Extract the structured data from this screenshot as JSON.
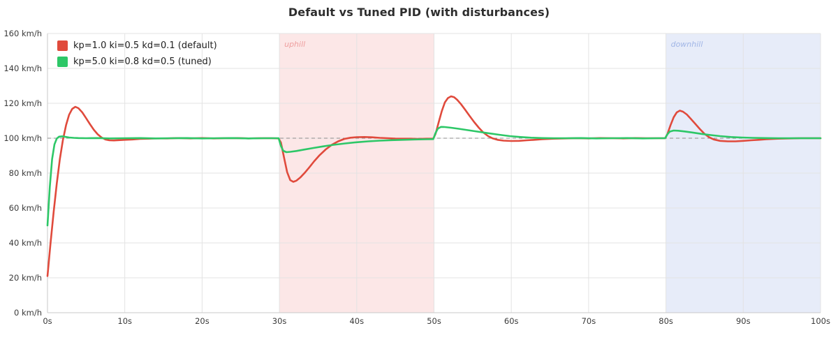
{
  "title": "Default vs Tuned PID (with disturbances)",
  "legend": {
    "items": [
      {
        "label": "kp=1.0 ki=0.5 kd=0.1 (default)",
        "color": "#e04a3c"
      },
      {
        "label": "kp=5.0 ki=0.8 kd=0.5 (tuned)",
        "color": "#2dc767"
      }
    ]
  },
  "chart_data": {
    "type": "line",
    "title": "Default vs Tuned PID (with disturbances)",
    "xlabel": "",
    "ylabel": "",
    "x_unit": "s",
    "y_unit": "km/h",
    "xlim": [
      0,
      100
    ],
    "ylim": [
      0,
      160
    ],
    "grid": true,
    "legend_position": "top-left",
    "setpoint": 100,
    "x_ticks": [
      0,
      10,
      20,
      30,
      40,
      50,
      60,
      70,
      80,
      90,
      100
    ],
    "x_tick_labels": [
      "0s",
      "10s",
      "20s",
      "30s",
      "40s",
      "50s",
      "60s",
      "70s",
      "80s",
      "90s",
      "100s"
    ],
    "y_ticks": [
      0,
      20,
      40,
      60,
      80,
      100,
      120,
      140,
      160
    ],
    "y_tick_labels": [
      "0 km/h",
      "20 km/h",
      "40 km/h",
      "60 km/h",
      "80 km/h",
      "100 km/h",
      "120 km/h",
      "140 km/h",
      "160 km/h"
    ],
    "colors": {
      "grid": "#e3e3e3",
      "axis": "#c9c9c9",
      "tick_text": "#3a3a3a",
      "setpoint": "#8c8c8c"
    },
    "regions": [
      {
        "label": "uphill",
        "start": 30,
        "end": 50,
        "fill": "rgba(231,86,86,0.14)",
        "text_color": "#ee9e9e"
      },
      {
        "label": "downhill",
        "start": 80,
        "end": 100,
        "fill": "rgba(104,134,219,0.16)",
        "text_color": "#a0b5e6"
      }
    ],
    "series": [
      {
        "name": "kp=1.0 ki=0.5 kd=0.1 (default)",
        "color": "#e04a3c",
        "points": [
          [
            0,
            21
          ],
          [
            0.4,
            40
          ],
          [
            0.8,
            58
          ],
          [
            1.2,
            74
          ],
          [
            1.6,
            88
          ],
          [
            2,
            99
          ],
          [
            2.4,
            107.5
          ],
          [
            2.8,
            113.5
          ],
          [
            3.2,
            116.8
          ],
          [
            3.6,
            118
          ],
          [
            4,
            117.2
          ],
          [
            4.5,
            114.8
          ],
          [
            5,
            111.5
          ],
          [
            5.5,
            108
          ],
          [
            6,
            104.8
          ],
          [
            6.5,
            102.2
          ],
          [
            7,
            100.4
          ],
          [
            7.5,
            99.3
          ],
          [
            8,
            98.8
          ],
          [
            8.6,
            98.7
          ],
          [
            9.2,
            98.9
          ],
          [
            10,
            99.1
          ],
          [
            11,
            99.3
          ],
          [
            12,
            99.6
          ],
          [
            13,
            99.7
          ],
          [
            14,
            99.9
          ],
          [
            15.5,
            99.9
          ],
          [
            17,
            100.1
          ],
          [
            18.5,
            99.9
          ],
          [
            20,
            100.1
          ],
          [
            21.5,
            99.9
          ],
          [
            23,
            100
          ],
          [
            24.5,
            100.1
          ],
          [
            26,
            99.9
          ],
          [
            27.5,
            100
          ],
          [
            29,
            100
          ],
          [
            29.9,
            99.9
          ],
          [
            30.2,
            97.5
          ],
          [
            30.6,
            89
          ],
          [
            31,
            80.5
          ],
          [
            31.4,
            76
          ],
          [
            31.8,
            75
          ],
          [
            32.2,
            75.7
          ],
          [
            32.7,
            77.5
          ],
          [
            33.3,
            80.3
          ],
          [
            33.9,
            83.5
          ],
          [
            34.5,
            86.8
          ],
          [
            35.2,
            90.3
          ],
          [
            36,
            93.6
          ],
          [
            36.8,
            96.3
          ],
          [
            37.6,
            98.2
          ],
          [
            38.4,
            99.6
          ],
          [
            39.2,
            100.3
          ],
          [
            40,
            100.6
          ],
          [
            41,
            100.7
          ],
          [
            42,
            100.5
          ],
          [
            43,
            100.2
          ],
          [
            44,
            100
          ],
          [
            45,
            99.8
          ],
          [
            46,
            99.7
          ],
          [
            47,
            99.7
          ],
          [
            48,
            99.6
          ],
          [
            49,
            99.7
          ],
          [
            49.9,
            99.7
          ],
          [
            50.2,
            102.5
          ],
          [
            50.6,
            109
          ],
          [
            51,
            115.5
          ],
          [
            51.4,
            120.5
          ],
          [
            51.8,
            123
          ],
          [
            52.2,
            124
          ],
          [
            52.6,
            123.5
          ],
          [
            53,
            122
          ],
          [
            53.5,
            119.5
          ],
          [
            54,
            116.5
          ],
          [
            54.6,
            112.8
          ],
          [
            55.2,
            109.2
          ],
          [
            55.8,
            106
          ],
          [
            56.4,
            103.2
          ],
          [
            57,
            101.2
          ],
          [
            57.6,
            99.9
          ],
          [
            58.2,
            99.1
          ],
          [
            59,
            98.6
          ],
          [
            60,
            98.4
          ],
          [
            61,
            98.5
          ],
          [
            62,
            98.8
          ],
          [
            63,
            99.1
          ],
          [
            64,
            99.4
          ],
          [
            65.5,
            99.7
          ],
          [
            67,
            99.9
          ],
          [
            68.5,
            100
          ],
          [
            70,
            99.9
          ],
          [
            71.5,
            100.1
          ],
          [
            73,
            100
          ],
          [
            74.5,
            99.9
          ],
          [
            76,
            100.1
          ],
          [
            77.5,
            100
          ],
          [
            79,
            100
          ],
          [
            79.9,
            100
          ],
          [
            80.2,
            102.5
          ],
          [
            80.6,
            107.5
          ],
          [
            81,
            112
          ],
          [
            81.4,
            114.8
          ],
          [
            81.8,
            115.8
          ],
          [
            82.2,
            115.2
          ],
          [
            82.7,
            113.6
          ],
          [
            83.2,
            111.2
          ],
          [
            83.8,
            108.2
          ],
          [
            84.4,
            105.2
          ],
          [
            85,
            102.5
          ],
          [
            85.6,
            100.5
          ],
          [
            86.2,
            99.3
          ],
          [
            87,
            98.5
          ],
          [
            88,
            98.2
          ],
          [
            89,
            98.2
          ],
          [
            90,
            98.5
          ],
          [
            91,
            98.8
          ],
          [
            92,
            99.1
          ],
          [
            93,
            99.4
          ],
          [
            94.5,
            99.7
          ],
          [
            96,
            99.9
          ],
          [
            97.5,
            100
          ],
          [
            99,
            100
          ],
          [
            100,
            100
          ]
        ]
      },
      {
        "name": "kp=5.0 ki=0.8 kd=0.5 (tuned)",
        "color": "#2dc767",
        "points": [
          [
            0,
            50
          ],
          [
            0.3,
            72
          ],
          [
            0.6,
            88
          ],
          [
            0.9,
            96.5
          ],
          [
            1.2,
            99.8
          ],
          [
            1.5,
            100.9
          ],
          [
            1.9,
            101.1
          ],
          [
            2.3,
            100.8
          ],
          [
            2.8,
            100.4
          ],
          [
            3.4,
            100.2
          ],
          [
            4,
            100.1
          ],
          [
            5,
            100
          ],
          [
            6.5,
            100.1
          ],
          [
            8,
            99.9
          ],
          [
            10,
            100
          ],
          [
            12,
            100.1
          ],
          [
            14,
            99.9
          ],
          [
            16,
            100
          ],
          [
            18,
            100.1
          ],
          [
            20,
            99.9
          ],
          [
            22,
            100
          ],
          [
            24,
            100.1
          ],
          [
            26,
            99.9
          ],
          [
            28,
            100
          ],
          [
            29.9,
            100
          ],
          [
            30.2,
            95.5
          ],
          [
            30.5,
            92.8
          ],
          [
            30.9,
            92
          ],
          [
            31.4,
            92.2
          ],
          [
            32.2,
            92.7
          ],
          [
            33.2,
            93.5
          ],
          [
            34.4,
            94.4
          ],
          [
            35.6,
            95.3
          ],
          [
            37,
            96.2
          ],
          [
            38.5,
            97
          ],
          [
            40,
            97.7
          ],
          [
            41.5,
            98.2
          ],
          [
            43,
            98.6
          ],
          [
            44.5,
            98.9
          ],
          [
            46,
            99.1
          ],
          [
            47.5,
            99.3
          ],
          [
            49,
            99.4
          ],
          [
            49.9,
            99.5
          ],
          [
            50.2,
            103
          ],
          [
            50.5,
            105.5
          ],
          [
            50.9,
            106.5
          ],
          [
            51.4,
            106.4
          ],
          [
            52.2,
            106
          ],
          [
            53.2,
            105.4
          ],
          [
            54.4,
            104.6
          ],
          [
            55.6,
            103.8
          ],
          [
            57,
            102.9
          ],
          [
            58.4,
            102
          ],
          [
            59.8,
            101.2
          ],
          [
            61.2,
            100.7
          ],
          [
            62.6,
            100.3
          ],
          [
            64,
            100.1
          ],
          [
            65.5,
            100
          ],
          [
            67,
            100
          ],
          [
            69,
            100.1
          ],
          [
            71,
            99.9
          ],
          [
            73,
            100
          ],
          [
            75,
            100.1
          ],
          [
            77,
            99.9
          ],
          [
            79,
            100
          ],
          [
            79.9,
            100
          ],
          [
            80.2,
            102.3
          ],
          [
            80.5,
            103.8
          ],
          [
            81,
            104.4
          ],
          [
            81.6,
            104.3
          ],
          [
            82.4,
            103.9
          ],
          [
            83.4,
            103.3
          ],
          [
            84.6,
            102.5
          ],
          [
            85.8,
            101.8
          ],
          [
            87,
            101.2
          ],
          [
            88.4,
            100.7
          ],
          [
            89.8,
            100.4
          ],
          [
            91.2,
            100.2
          ],
          [
            92.8,
            100.1
          ],
          [
            94.5,
            100
          ],
          [
            96.5,
            100
          ],
          [
            98.5,
            100
          ],
          [
            100,
            100
          ]
        ]
      }
    ]
  }
}
